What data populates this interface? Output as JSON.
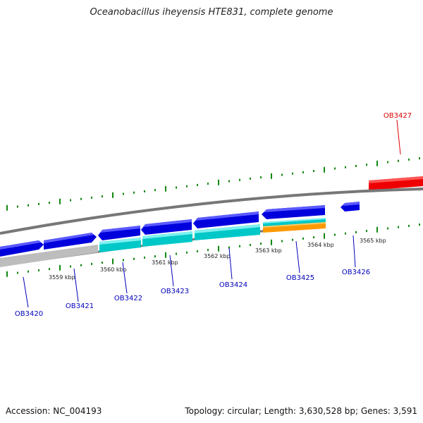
{
  "title": "Oceanobacillus iheyensis HTE831, complete genome",
  "footer": {
    "accession": "Accession: NC_004193",
    "summary": "Topology: circular; Length: 3,630,528 bp; Genes: 3,591"
  },
  "colors": {
    "forward_gene": "#0000dd",
    "forward_gene_light": "#5a5aff",
    "cyan_feature": "#00c8c8",
    "orange_feature": "#ff9900",
    "grey_feature": "#bdbdbd",
    "highlight_gene": "#ee0000",
    "scale_ticks": "#118811",
    "backbone": "#777777",
    "label_blue": "#0000bb",
    "label_red": "#dd0000"
  },
  "scale": {
    "unit": "kbp",
    "labels": [
      "3559 kbp",
      "3560 kbp",
      "3561 kbp",
      "3562 kbp",
      "3563 kbp",
      "3564 kbp",
      "3565 kbp"
    ]
  },
  "genes": [
    {
      "id": "OB3420",
      "color": "blue"
    },
    {
      "id": "OB3421",
      "color": "blue"
    },
    {
      "id": "OB3422",
      "color": "blue"
    },
    {
      "id": "OB3423",
      "color": "blue"
    },
    {
      "id": "OB3424",
      "color": "blue"
    },
    {
      "id": "OB3425",
      "color": "blue"
    },
    {
      "id": "OB3426",
      "color": "blue"
    },
    {
      "id": "OB3427",
      "color": "red"
    }
  ]
}
